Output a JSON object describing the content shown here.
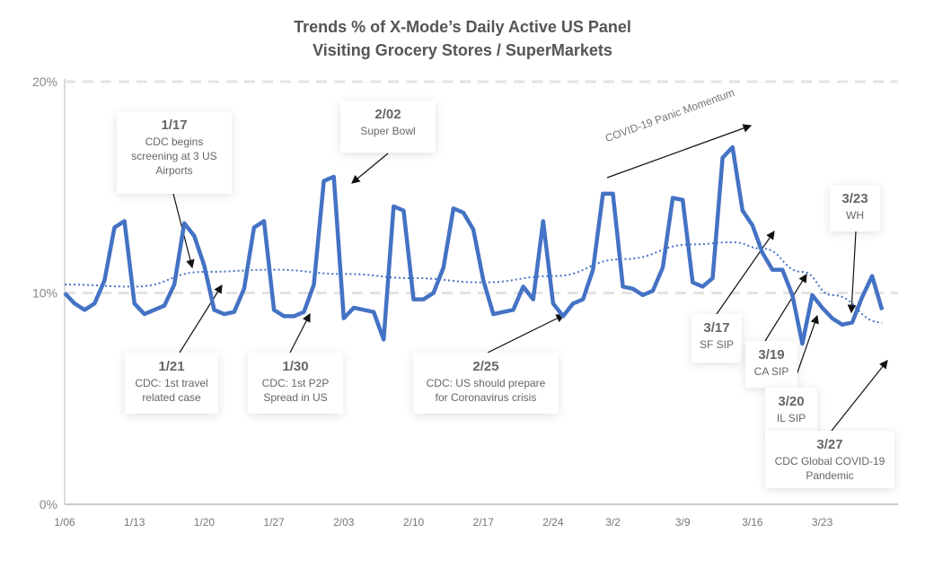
{
  "chart_data": {
    "type": "line",
    "title": [
      "Trends % of X-Mode’s Daily Active  US Panel",
      "Visiting Grocery Stores / SuperMarkets"
    ],
    "x_start": "1/06",
    "x_interval": "daily",
    "ylim": [
      0,
      20
    ],
    "y_ticks": [
      "0%",
      "10%",
      "20%"
    ],
    "y_tick_values": [
      0,
      10,
      20
    ],
    "x_ticks": [
      "1/06",
      "1/13",
      "1/20",
      "1/27",
      "2/03",
      "2/10",
      "2/17",
      "2/24",
      "3/2",
      "3/9",
      "3/16",
      "3/23"
    ],
    "x_tick_days": [
      0,
      7,
      14,
      21,
      28,
      35,
      42,
      49,
      55,
      62,
      69,
      76
    ],
    "grid": "horizontal dashed",
    "colors": {
      "series": "#4472C4",
      "trend": "#4472C4",
      "grid": "#e3e3e3"
    },
    "series": [
      {
        "values": [
          10.0,
          9.5,
          9.2,
          9.5,
          10.6,
          13.1,
          13.4,
          9.5,
          9.0,
          9.2,
          9.4,
          10.4,
          13.3,
          12.7,
          11.3,
          9.2,
          9.0,
          9.1,
          10.2,
          13.1,
          13.4,
          9.2,
          8.9,
          8.9,
          9.1,
          10.4,
          15.3,
          15.5,
          8.8,
          9.3,
          9.2,
          9.1,
          7.8,
          14.1,
          13.9,
          9.7,
          9.7,
          10.0,
          11.2,
          14.0,
          13.8,
          13.0,
          10.6,
          9.0,
          9.1,
          9.2,
          10.3,
          9.7,
          13.4,
          9.5,
          8.9,
          9.5,
          9.7,
          11.1,
          14.7,
          14.7,
          10.3,
          10.2,
          9.9,
          10.1,
          11.2,
          14.5,
          14.4,
          10.5,
          10.3,
          10.7,
          16.4,
          16.9,
          13.9,
          13.2,
          11.9,
          11.1,
          11.1,
          9.9,
          7.6,
          9.9,
          9.3,
          8.8,
          8.5,
          8.6,
          9.8,
          10.8,
          9.2
        ]
      }
    ],
    "trend": {
      "style": "dotted",
      "days": [
        0,
        7,
        14,
        21,
        28,
        35,
        42,
        49,
        56,
        63,
        67,
        70,
        74,
        77,
        82
      ],
      "values": [
        10.4,
        10.3,
        11.0,
        11.1,
        10.9,
        10.7,
        10.5,
        10.8,
        11.6,
        12.3,
        12.4,
        12.1,
        11.0,
        9.9,
        8.6
      ]
    },
    "annotations": [
      {
        "date": "1/17",
        "text": "CDC begins screening at 3 US Airports"
      },
      {
        "date": "2/02",
        "text": "Super Bowl"
      },
      {
        "date": "1/21",
        "text": "CDC: 1st travel related case"
      },
      {
        "date": "1/30",
        "text": "CDC: 1st P2P Spread in US"
      },
      {
        "date": "2/25",
        "text": "CDC: US should prepare for Coronavirus crisis"
      },
      {
        "date": "3/17",
        "text": "SF SIP"
      },
      {
        "date": "3/19",
        "text": "CA SIP"
      },
      {
        "date": "3/20",
        "text": "IL SIP"
      },
      {
        "date": "3/23",
        "text": "WH"
      },
      {
        "date": "3/27",
        "text": "CDC Global COVID-19 Pandemic"
      }
    ],
    "momentum_label": "COVID-19 Panic Momentum"
  }
}
